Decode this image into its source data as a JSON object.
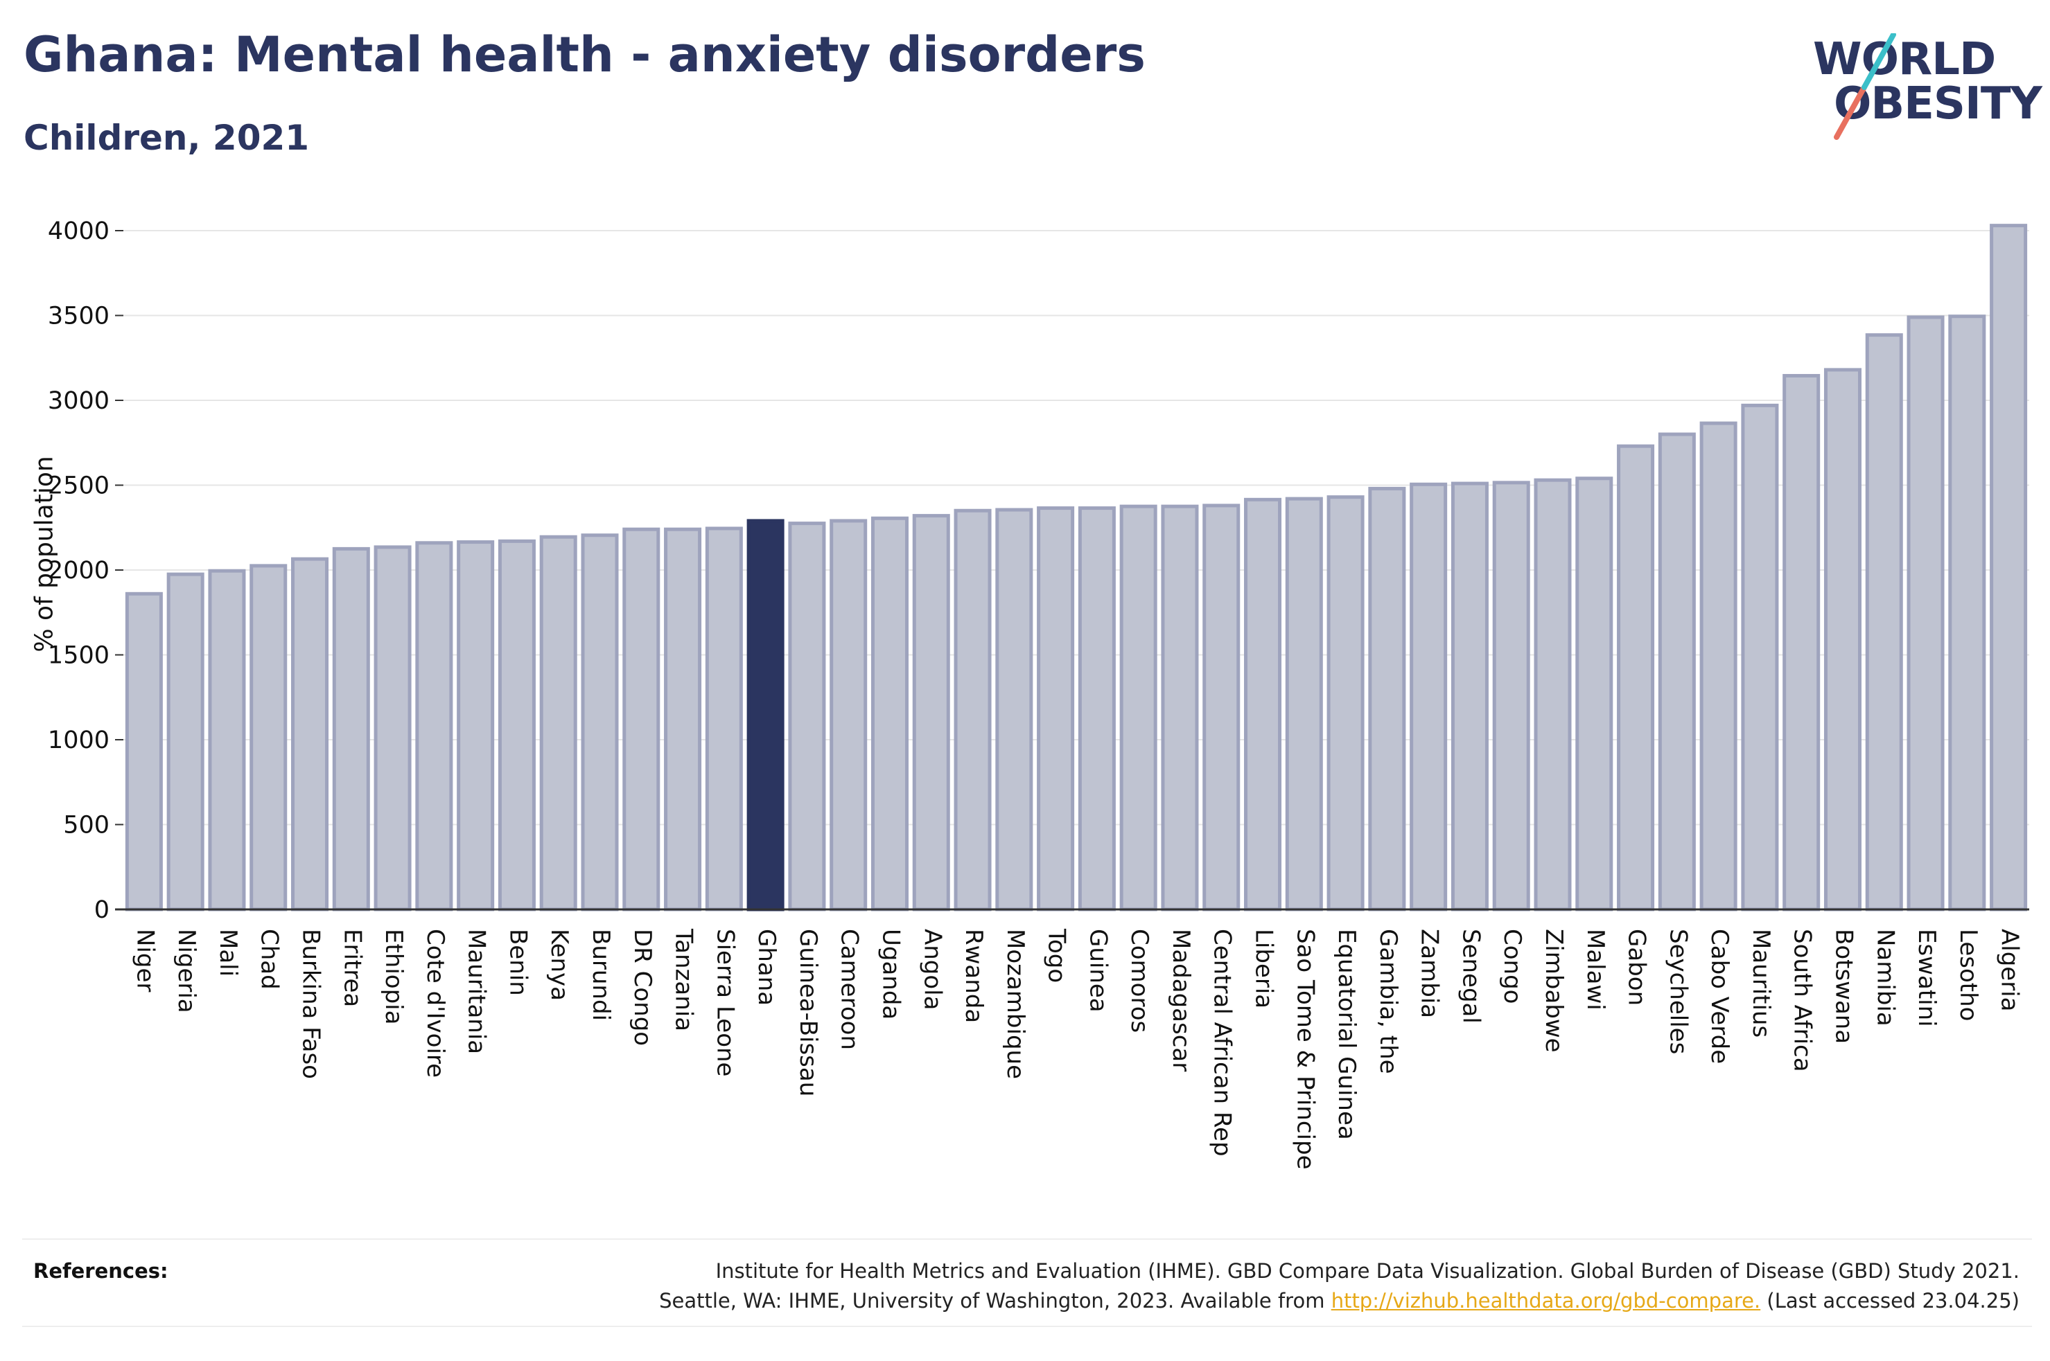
{
  "header": {
    "title": "Ghana: Mental health - anxiety disorders",
    "subtitle": "Children, 2021"
  },
  "logo": {
    "line1": "WORLD",
    "line2": "OBESITY",
    "text_color": "#2b3560",
    "slash_colors": [
      "#e8705f",
      "#3bbfc9"
    ]
  },
  "references": {
    "label": "References:",
    "line1": "Institute for Health Metrics and Evaluation (IHME). GBD Compare Data Visualization. Global Burden of Disease (GBD) Study 2021.",
    "line2_before": "Seattle, WA: IHME, University of Washington, 2023. Available from ",
    "link_text": "http://vizhub.healthdata.org/gbd-compare.",
    "line2_after": " (Last accessed 23.04.25)"
  },
  "colors": {
    "bar_fill": "#bfc3d1",
    "bar_stroke": "#9ea3bd",
    "highlight_fill": "#2b3560",
    "grid": "#e6e6e6",
    "axis": "#333333"
  },
  "chart_data": {
    "type": "bar",
    "title": "Ghana: Mental health - anxiety disorders",
    "subtitle": "Children, 2021",
    "ylabel": "% of population",
    "xlabel": "",
    "ylim": [
      0,
      4000
    ],
    "yticks": [
      0,
      500,
      1000,
      1500,
      2000,
      2500,
      3000,
      3500,
      4000
    ],
    "grid": true,
    "highlight": "Ghana",
    "categories": [
      "Niger",
      "Nigeria",
      "Mali",
      "Chad",
      "Burkina Faso",
      "Eritrea",
      "Ethiopia",
      "Cote d'Ivoire",
      "Mauritania",
      "Benin",
      "Kenya",
      "Burundi",
      "DR Congo",
      "Tanzania",
      "Sierra Leone",
      "Ghana",
      "Guinea-Bissau",
      "Cameroon",
      "Uganda",
      "Angola",
      "Rwanda",
      "Mozambique",
      "Togo",
      "Guinea",
      "Comoros",
      "Madagascar",
      "Central African Rep",
      "Liberia",
      "Sao Tome & Principe",
      "Equatorial Guinea",
      "Gambia, the",
      "Zambia",
      "Senegal",
      "Congo",
      "Zimbabwe",
      "Malawi",
      "Gabon",
      "Seychelles",
      "Cabo Verde",
      "Mauritius",
      "South Africa",
      "Botswana",
      "Namibia",
      "Eswatini",
      "Lesotho",
      "Algeria"
    ],
    "values": [
      1860,
      1975,
      1995,
      2025,
      2065,
      2125,
      2135,
      2160,
      2165,
      2170,
      2195,
      2205,
      2240,
      2240,
      2245,
      2290,
      2275,
      2290,
      2305,
      2320,
      2350,
      2355,
      2365,
      2365,
      2375,
      2375,
      2380,
      2415,
      2420,
      2430,
      2480,
      2505,
      2510,
      2515,
      2530,
      2540,
      2730,
      2800,
      2865,
      2970,
      3145,
      3180,
      3385,
      3490,
      3495,
      4030
    ]
  }
}
